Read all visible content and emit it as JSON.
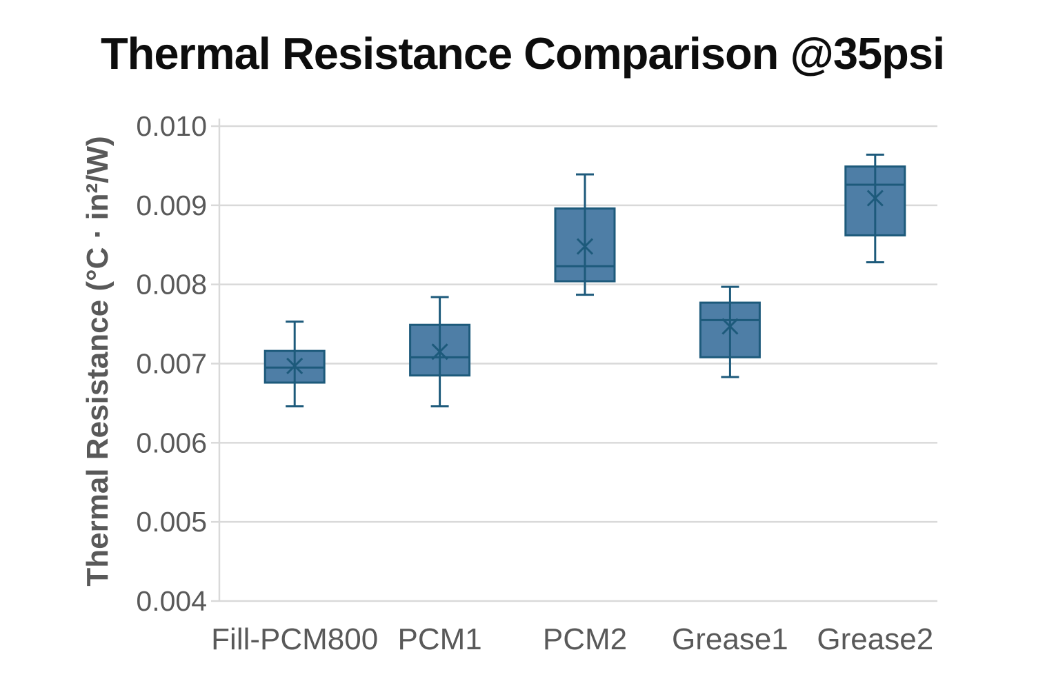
{
  "title": "Thermal Resistance Comparison @35psi",
  "chart_data": {
    "type": "box",
    "title": "Thermal Resistance Comparison @35psi",
    "xlabel": "",
    "ylabel": "Thermal Resistance (°C · in²/W)",
    "ylim": [
      0.004,
      0.01
    ],
    "ytick_step": 0.001,
    "ytick_labels": [
      "0.010",
      "0.009",
      "0.008",
      "0.007",
      "0.006",
      "0.005",
      "0.004"
    ],
    "grid": true,
    "legend": "none",
    "categories": [
      "Fill-PCM800",
      "PCM1",
      "PCM2",
      "Grease1",
      "Grease2"
    ],
    "series": [
      {
        "name": "Fill-PCM800",
        "min": 0.00646,
        "q1": 0.00676,
        "median": 0.00695,
        "mean": 0.00697,
        "q3": 0.00716,
        "max": 0.00753
      },
      {
        "name": "PCM1",
        "min": 0.00646,
        "q1": 0.00685,
        "median": 0.00708,
        "mean": 0.00715,
        "q3": 0.00749,
        "max": 0.00784
      },
      {
        "name": "PCM2",
        "min": 0.00787,
        "q1": 0.00804,
        "median": 0.00823,
        "mean": 0.00848,
        "q3": 0.00896,
        "max": 0.00939
      },
      {
        "name": "Grease1",
        "min": 0.00683,
        "q1": 0.00708,
        "median": 0.00755,
        "mean": 0.00747,
        "q3": 0.00777,
        "max": 0.00797
      },
      {
        "name": "Grease2",
        "min": 0.00828,
        "q1": 0.00862,
        "median": 0.00926,
        "mean": 0.00909,
        "q3": 0.00949,
        "max": 0.00964
      }
    ],
    "colors": {
      "box_fill": "#4E7EA6",
      "box_stroke": "#1D5A7B",
      "mean_marker": "#1D5A7B",
      "gridline": "#D9D9D9",
      "axis_line": "#D9D9D9",
      "tick_label": "#595959",
      "title_color": "#0D0D0D"
    }
  }
}
